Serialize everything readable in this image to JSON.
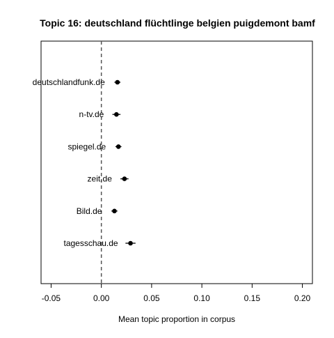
{
  "chart_data": {
    "type": "scatter",
    "title": "Topic 16: deutschland flüchtlinge belgien puigdemont bamf",
    "xlabel": "Mean topic proportion in corpus",
    "ylabel": "",
    "xlim": [
      -0.06,
      0.21
    ],
    "x_ticks": [
      -0.05,
      0.0,
      0.05,
      0.1,
      0.15,
      0.2
    ],
    "x_tick_labels": [
      "-0.05",
      "0.00",
      "0.05",
      "0.10",
      "0.15",
      "0.20"
    ],
    "reference_line": 0.0,
    "grid": false,
    "legend": "none",
    "series": [
      {
        "points": [
          {
            "label": "deutschlandfunk.de",
            "value": 0.016,
            "ci": [
              0.013,
              0.019
            ]
          },
          {
            "label": "n-tv.de",
            "value": 0.015,
            "ci": [
              0.011,
              0.019
            ]
          },
          {
            "label": "spiegel.de",
            "value": 0.017,
            "ci": [
              0.014,
              0.02
            ]
          },
          {
            "label": "zeit.de",
            "value": 0.023,
            "ci": [
              0.019,
              0.027
            ]
          },
          {
            "label": "Bild.de",
            "value": 0.013,
            "ci": [
              0.01,
              0.016
            ]
          },
          {
            "label": "tagesschau.de",
            "value": 0.029,
            "ci": [
              0.024,
              0.034
            ]
          }
        ]
      }
    ],
    "colors": {
      "point": "#000000",
      "reference_line": "#555555",
      "frame": "#000000"
    }
  }
}
